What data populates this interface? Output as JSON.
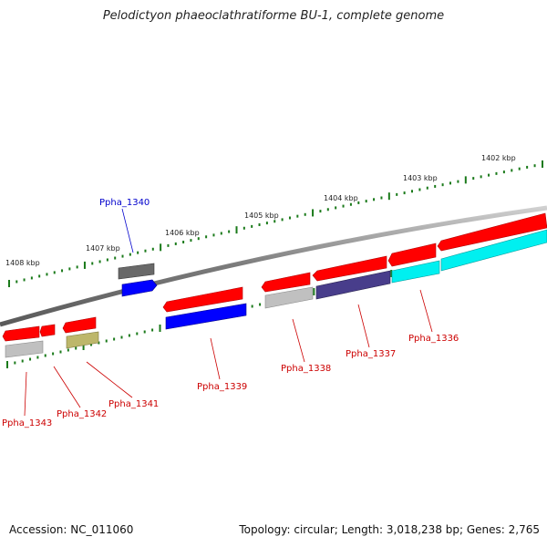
{
  "title": "Pelodictyon phaeoclathratiforme BU-1, complete genome",
  "footer": {
    "accession": "Accession: NC_011060",
    "topology": "Topology: circular; Length: 3,018,238 bp; Genes: 2,765"
  },
  "colors": {
    "backbone": "#808080",
    "tick": "#1a7a1a",
    "label_red": "#cc0000",
    "label_blue": "#0000cc"
  },
  "ticks": {
    "kbp_labels": [
      "1402 kbp",
      "1403 kbp",
      "1404 kbp",
      "1405 kbp",
      "1406 kbp",
      "1407 kbp",
      "1408 kbp"
    ]
  },
  "genes": [
    {
      "id": "Ppha_1336",
      "color": "#cc0000",
      "fill": "#ff0000"
    },
    {
      "id": "Ppha_1337",
      "color": "#cc0000",
      "fill": "#483d8b"
    },
    {
      "id": "Ppha_1338",
      "color": "#cc0000",
      "fill": "#c0c0c0"
    },
    {
      "id": "Ppha_1339",
      "color": "#cc0000",
      "fill": "#0000ff"
    },
    {
      "id": "Ppha_1340",
      "color": "#0000cc",
      "fill": "#696969"
    },
    {
      "id": "Ppha_1341",
      "color": "#cc0000",
      "fill": "#bdb76b"
    },
    {
      "id": "Ppha_1342",
      "color": "#cc0000",
      "fill": "#ff0000"
    },
    {
      "id": "Ppha_1343",
      "color": "#cc0000",
      "fill": "#c0c0c0"
    }
  ]
}
